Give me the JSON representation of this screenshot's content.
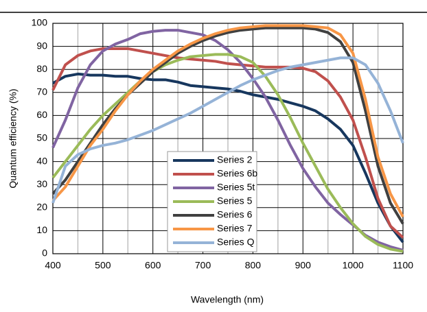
{
  "chart_data": {
    "type": "line",
    "x_label": "Wavelength (nm)",
    "y_label": "Quantum efficiency  (%)",
    "x": [
      400,
      425,
      450,
      475,
      500,
      525,
      550,
      575,
      600,
      625,
      650,
      675,
      700,
      725,
      750,
      775,
      800,
      825,
      850,
      875,
      900,
      925,
      950,
      975,
      1000,
      1025,
      1050,
      1075,
      1100
    ],
    "series": [
      {
        "name": "Series 2",
        "color": "#17375e",
        "values": [
          74,
          77,
          78,
          77.5,
          77.5,
          77,
          77,
          76,
          75.5,
          75.5,
          74.5,
          73,
          72.5,
          72,
          71.5,
          70.5,
          69,
          68,
          67,
          65.5,
          64,
          62,
          58.5,
          54,
          47,
          35,
          22,
          12,
          5
        ]
      },
      {
        "name": "Series 6b",
        "color": "#c0504d",
        "values": [
          71,
          82,
          86,
          88,
          89,
          89,
          89,
          88,
          87,
          86,
          85,
          84.5,
          84,
          83.5,
          82.5,
          82,
          81.5,
          81,
          81,
          81,
          80.5,
          79,
          75,
          68,
          58,
          42,
          24,
          12,
          7
        ]
      },
      {
        "name": "Series 5t",
        "color": "#8064a2",
        "values": [
          46,
          58,
          72,
          82,
          88,
          91,
          93,
          95.5,
          96.5,
          97,
          97,
          96,
          95,
          92.5,
          88.5,
          83,
          76,
          68,
          58,
          47,
          37,
          29,
          22,
          17,
          12.5,
          8,
          5,
          3,
          1.5
        ]
      },
      {
        "name": "Series 5",
        "color": "#9bbb59",
        "values": [
          33,
          40,
          47,
          54,
          60,
          65,
          70,
          75,
          79,
          82,
          84,
          85.5,
          86,
          86.5,
          86.5,
          85.5,
          83,
          77,
          69,
          59,
          48,
          38,
          28,
          20,
          13,
          7.5,
          4,
          2,
          1
        ]
      },
      {
        "name": "Series 6",
        "color": "#404040",
        "values": [
          26,
          32,
          40,
          48,
          56,
          63,
          69,
          74,
          79,
          83,
          87,
          90,
          92.5,
          94.5,
          96,
          97,
          97.5,
          98,
          98,
          98,
          98,
          97.5,
          96,
          92,
          83,
          62,
          38,
          22,
          13
        ]
      },
      {
        "name": "Series 7",
        "color": "#f79646",
        "values": [
          23,
          29,
          38,
          47,
          54,
          62,
          69,
          75,
          80,
          84,
          88,
          91,
          93.5,
          95.5,
          97,
          98,
          98.5,
          99,
          99,
          99,
          99,
          98.5,
          98,
          95,
          87,
          67,
          42,
          26,
          16
        ]
      },
      {
        "name": "Series Q",
        "color": "#95b3d7",
        "values": [
          22,
          38,
          43,
          45.5,
          47,
          48,
          49.5,
          51.5,
          53.5,
          56,
          58.5,
          61,
          64,
          67,
          70,
          73,
          75.5,
          77.5,
          79.5,
          81,
          82,
          83,
          84,
          85,
          85,
          82,
          74,
          62,
          48
        ]
      }
    ],
    "xlim": [
      400,
      1100
    ],
    "xticks": [
      400,
      500,
      600,
      700,
      800,
      900,
      1000,
      1100
    ],
    "ylim": [
      0,
      100
    ],
    "yticks": [
      0,
      10,
      20,
      30,
      40,
      50,
      60,
      70,
      80,
      90,
      100
    ],
    "x_minor_ticks": [
      450,
      550,
      650,
      750,
      850,
      950,
      1050
    ],
    "grid": true
  }
}
